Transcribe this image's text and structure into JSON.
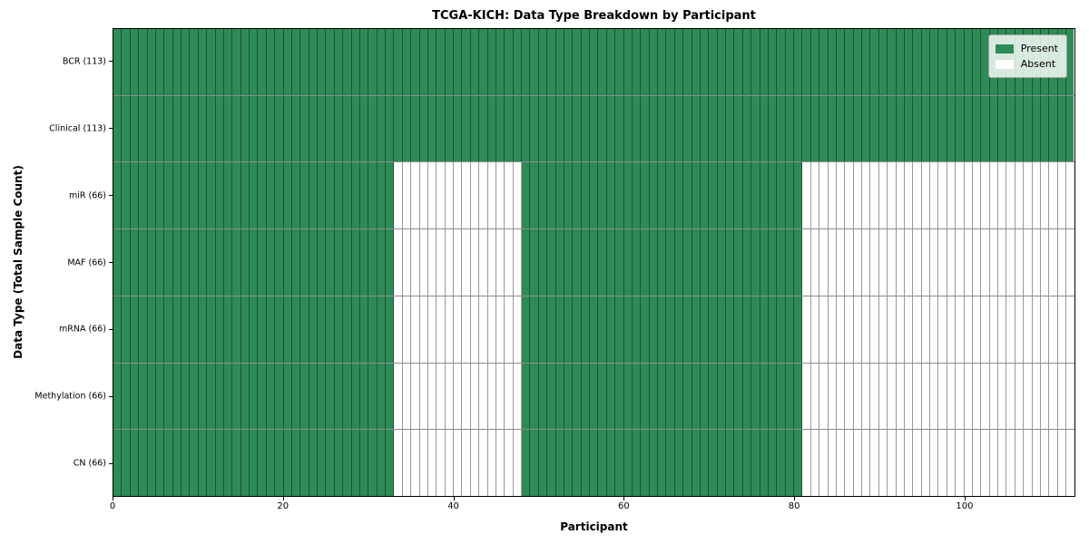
{
  "chart_data": {
    "type": "heatmap",
    "title": "TCGA-KICH: Data Type Breakdown by Participant",
    "xlabel": "Participant",
    "ylabel": "Data Type (Total Sample Count)",
    "n_participants": 113,
    "x_ticks": [
      0,
      20,
      40,
      60,
      80,
      100
    ],
    "x_range": [
      0,
      113
    ],
    "grid": "cell-borders",
    "legend_position": "upper-right",
    "colors": {
      "present": "#2e8b57",
      "absent": "#ffffff",
      "cell_edge": "rgba(0,0,0,0.4)",
      "spine": "#000000"
    },
    "legend": [
      {
        "label": "Present",
        "color": "#2e8b57"
      },
      {
        "label": "Absent",
        "color": "#ffffff"
      }
    ],
    "rows": [
      {
        "label": "BCR (113)",
        "data_type": "BCR",
        "present_count": 113,
        "present_ranges": [
          [
            0,
            113
          ]
        ]
      },
      {
        "label": "Clinical (113)",
        "data_type": "Clinical",
        "present_count": 113,
        "present_ranges": [
          [
            0,
            113
          ]
        ]
      },
      {
        "label": "miR (66)",
        "data_type": "miR",
        "present_count": 66,
        "present_ranges": [
          [
            0,
            33
          ],
          [
            48,
            81
          ]
        ]
      },
      {
        "label": "MAF (66)",
        "data_type": "MAF",
        "present_count": 66,
        "present_ranges": [
          [
            0,
            33
          ],
          [
            48,
            81
          ]
        ]
      },
      {
        "label": "mRNA (66)",
        "data_type": "mRNA",
        "present_count": 66,
        "present_ranges": [
          [
            0,
            33
          ],
          [
            48,
            81
          ]
        ]
      },
      {
        "label": "Methylation (66)",
        "data_type": "Methylation",
        "present_count": 66,
        "present_ranges": [
          [
            0,
            33
          ],
          [
            48,
            81
          ]
        ]
      },
      {
        "label": "CN (66)",
        "data_type": "CN",
        "present_count": 66,
        "present_ranges": [
          [
            0,
            33
          ],
          [
            48,
            81
          ]
        ]
      }
    ]
  }
}
